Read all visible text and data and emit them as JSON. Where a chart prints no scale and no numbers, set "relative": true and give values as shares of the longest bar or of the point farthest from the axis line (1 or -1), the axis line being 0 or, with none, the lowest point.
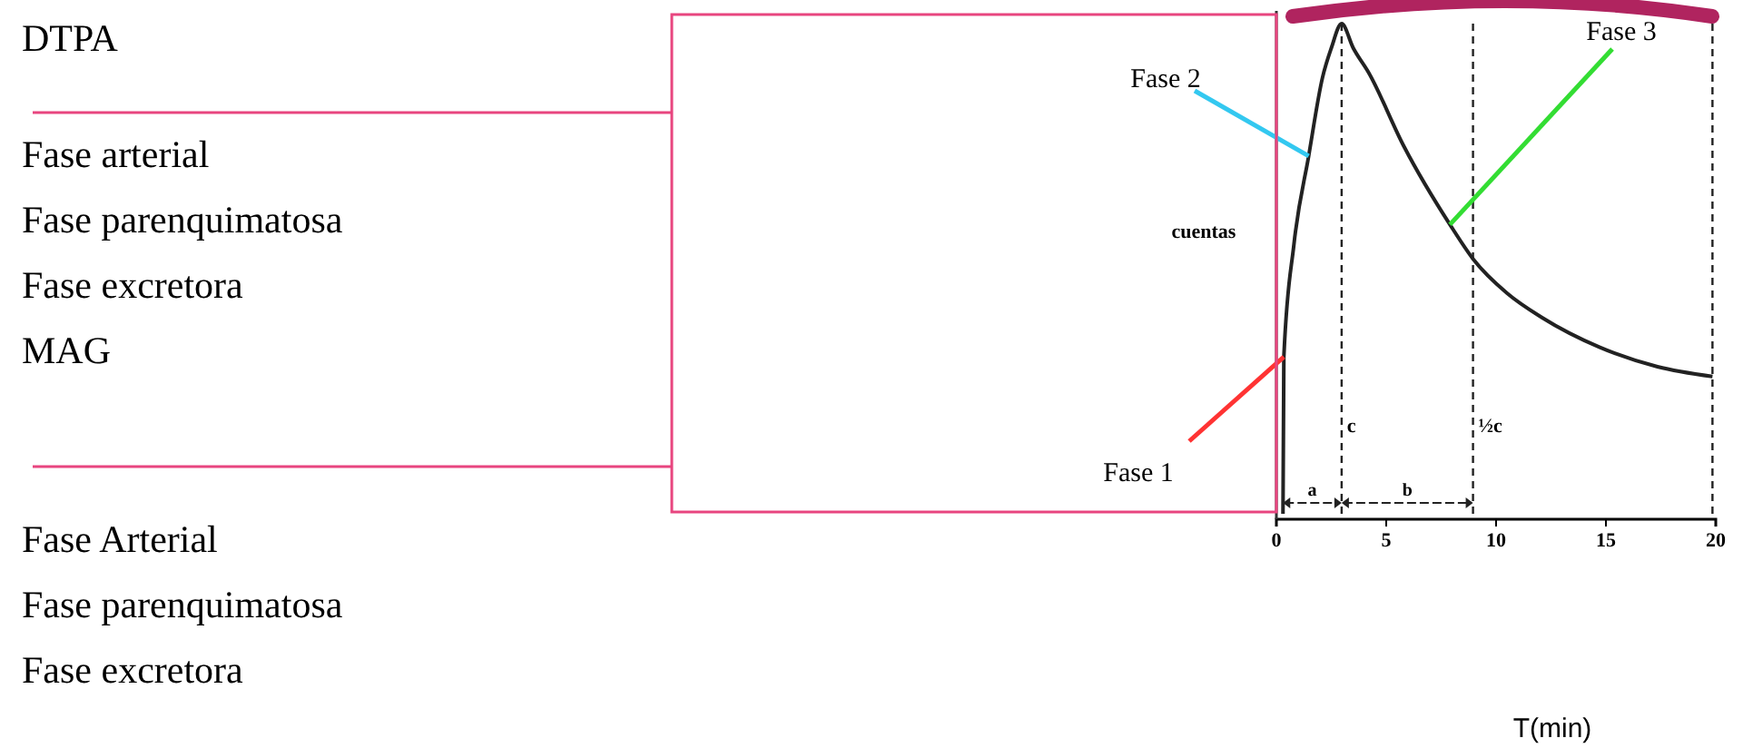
{
  "chart_data": {
    "type": "line",
    "relative": true,
    "ylabel": "cuentas",
    "x": [
      0.3,
      0.34,
      0.8,
      1.47,
      2.1,
      2.5,
      2.97,
      3.5,
      4.2,
      5.8,
      7.9,
      8.95,
      10.5,
      12.1,
      14.7,
      17.35,
      19.85
    ],
    "series": [
      {
        "color": "#222222",
        "values": [
          0,
          0.32,
          0.55,
          0.73,
          0.89,
          0.95,
          1,
          0.95,
          0.9,
          0.75,
          0.59,
          0.52,
          0.45,
          0.4,
          0.34,
          0.3,
          0.28
        ]
      }
    ],
    "xlim": [
      0,
      20
    ],
    "xticks": [
      0,
      5,
      10,
      15,
      20
    ],
    "tick_labels": "x",
    "marker": "none",
    "line_style": "solid",
    "ref_lines": [
      {
        "axis": "x",
        "value": 2.97,
        "label": "c",
        "line_style": "dashed"
      },
      {
        "axis": "x",
        "value": 8.95,
        "label": "½c",
        "line_style": "dashed"
      },
      {
        "axis": "x",
        "value": 19.85,
        "label": null,
        "line_style": "dashed"
      }
    ],
    "annotations": [
      {
        "text": "Fase 1",
        "x": 0.34,
        "y": 0.32
      },
      {
        "text": "Fase 2",
        "x": 1.47,
        "y": 0.73
      },
      {
        "text": "Fase 3",
        "x": 7.9,
        "y": 0.59
      },
      "a",
      "b",
      "DTPA",
      "Fase arterial",
      "Fase parenquimatosa",
      "Fase excretora",
      "MAG",
      "Fase Arterial",
      "Fase parenquimatosa",
      "Fase excretora",
      "T(min)"
    ]
  }
}
